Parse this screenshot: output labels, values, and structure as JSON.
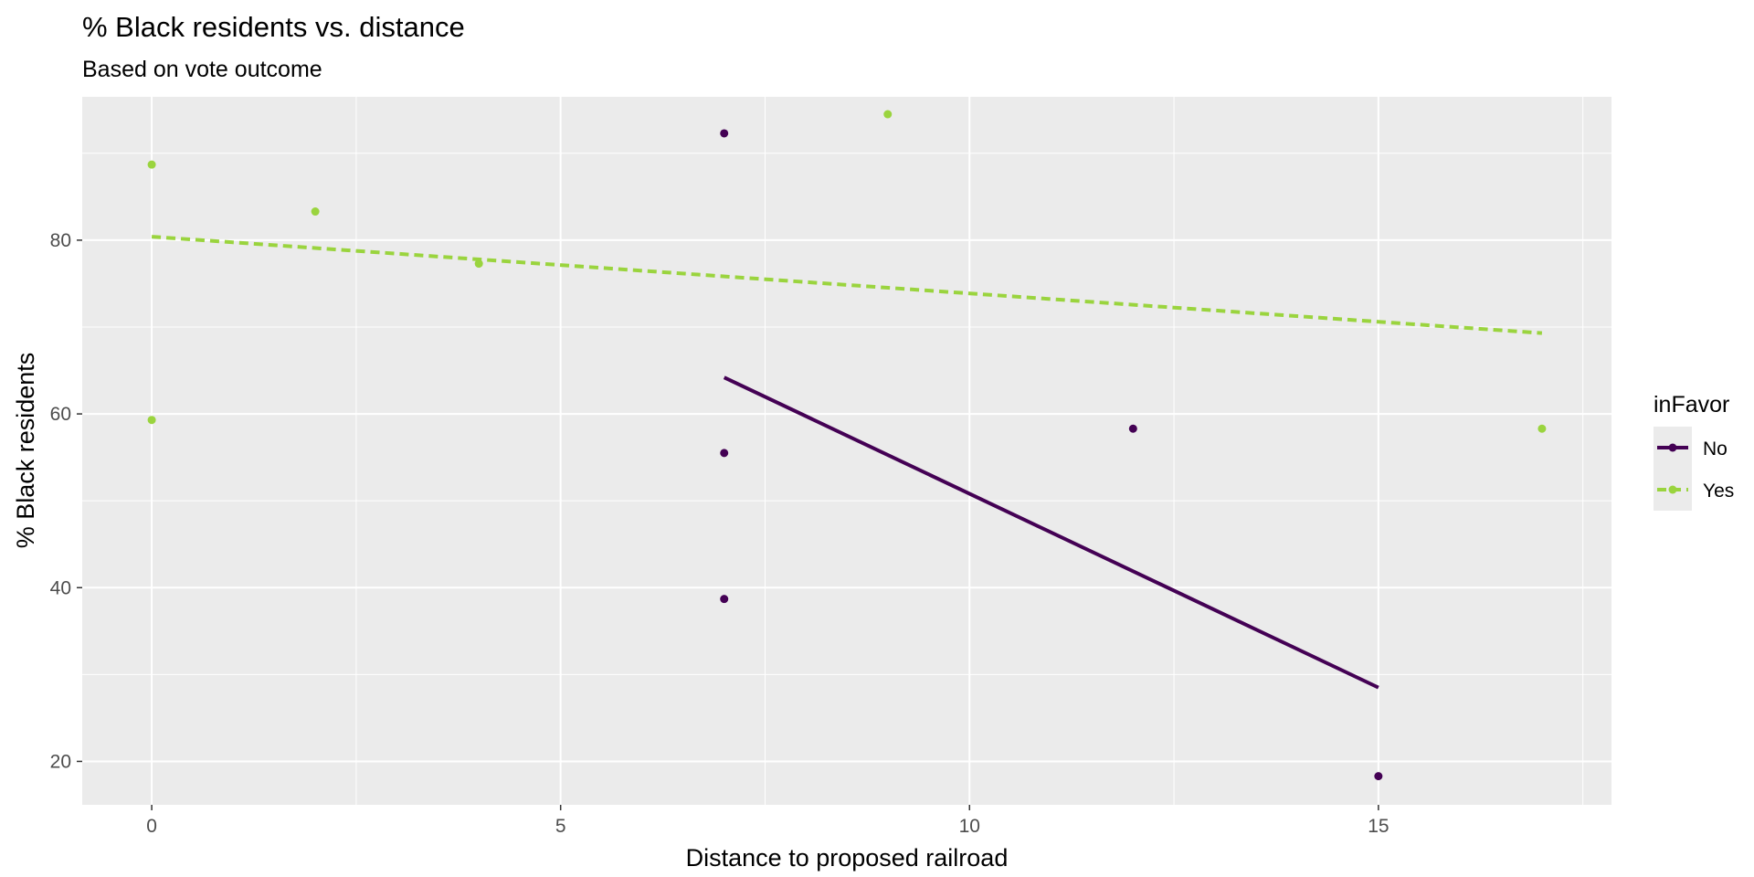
{
  "chart_data": {
    "type": "scatter",
    "title": "% Black residents vs. distance",
    "subtitle": "Based on vote outcome",
    "xlabel": "Distance to proposed railroad",
    "ylabel": "% Black residents",
    "xlim": [
      -0.85,
      17.85
    ],
    "ylim": [
      15,
      96.5
    ],
    "x_ticks": [
      0,
      5,
      10,
      15
    ],
    "y_ticks": [
      20,
      40,
      60,
      80
    ],
    "grid": true,
    "legend": {
      "title": "inFavor",
      "position": "right",
      "entries": [
        "No",
        "Yes"
      ]
    },
    "series": [
      {
        "name": "No",
        "color": "#440154",
        "line_style": "solid",
        "points": [
          [
            7,
            92.3
          ],
          [
            7,
            55.5
          ],
          [
            7,
            38.7
          ],
          [
            12,
            58.3
          ],
          [
            15,
            18.3
          ]
        ],
        "trend": [
          [
            7,
            64.2
          ],
          [
            15,
            28.5
          ]
        ]
      },
      {
        "name": "Yes",
        "color": "#9ad43e",
        "line_style": "dashed",
        "points": [
          [
            0,
            88.7
          ],
          [
            0,
            59.3
          ],
          [
            2,
            83.3
          ],
          [
            4,
            77.3
          ],
          [
            9,
            94.5
          ],
          [
            17,
            58.3
          ]
        ],
        "trend": [
          [
            0,
            80.4
          ],
          [
            17,
            69.3
          ]
        ]
      }
    ]
  }
}
